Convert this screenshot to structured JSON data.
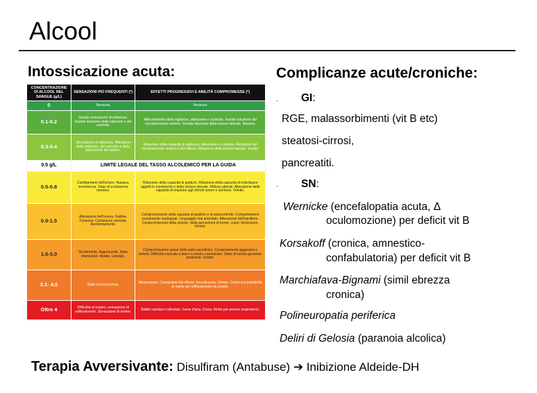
{
  "title": "Alcool",
  "left_heading": "Intossicazione acuta:",
  "right_heading": "Complicanze acute/croniche:",
  "table": {
    "headers": [
      "CONCENTRAZIONE DI ALCOOL NEL SANGUE (g/L)",
      "SENSAZIONI PIÙ FREQUENTI (*)",
      "EFFETTI PROGRESSIVI E ABILITÀ COMPROMESSE (*)"
    ],
    "rows": [
      {
        "conc": "0",
        "sens": "Nessuna",
        "eff": "Nessuno",
        "color": "#2e9e4a",
        "fg": "#ffffff"
      },
      {
        "conc": "0.1-0.2",
        "sens": "Iniziale sensazione di ebbrezza. Iniziale riduzione delle inibizioni e del controllo.",
        "eff": "Affievolimento della vigilanza, attenzione e controllo. Iniziale riduzione del coordinamento motorio. Iniziale riduzione della visione laterale. Nausea.",
        "color": "#5aae3c",
        "fg": "#ffffff"
      },
      {
        "conc": "0.3-0.4",
        "sens": "Sensazione di ebbrezza. Riduzione delle inibizioni, del controllo e della percezione del rischio.",
        "eff": "Riduzione della capacità di vigilanza, attenzione e controllo. Riduzione del coordinamento motorio e dei riflessi. Riduzione della visione laterale. Vomito.",
        "color": "#8cc63f",
        "fg": "#ffffff"
      },
      {
        "conc": "0.5-0.8",
        "sens": "Cambiamenti dell'umore. Nausea, sonnolenza. Stato di eccitazione emotiva.",
        "eff": "Riduzione della capacità di giudizio. Riduzione della capacità di individuare oggetti in movimento e della visione laterale. Riflessi alterati. Alterazione delle capacità di reazione agli stimoli sonori e luminosi. Vomito.",
        "color": "#f9ea3a",
        "fg": "#222222"
      },
      {
        "conc": "0.9-1.5",
        "sens": "Alterazione dell'umore. Rabbia. Tristezza. Confusione mentale, disorientamento.",
        "eff": "Compromissione della capacità di giudizio e di autocontrollo. Comportamenti socialmente inadeguati. Linguaggio mal articolato. Alterazione dell'equilibrio. Compromissione della visione, della percezione di forme, colori, dimensioni. Vomito.",
        "color": "#fbc02d",
        "fg": "#222222"
      },
      {
        "conc": "1.6-3.0",
        "sens": "Stordimento. Aggressività. Stato depressivo. Apatia. Letargia.",
        "eff": "Compromissione grave dello stato psicofisico. Comportamenti aggressivi e violenti. Difficoltà marcata a stare in piedi o camminare. Stato di inerzia generale. Ipotermia. Vomito.",
        "color": "#f59b2b",
        "fg": "#222222"
      },
      {
        "conc": "3.1- 4.0",
        "sens": "Stato di incoscienza.",
        "eff": "Allucinazioni. Cessazione dei riflessi. Incontinenza. Vomito. Coma con possibilità di morte per soffocamento da vomito.",
        "color": "#ef7b2a",
        "fg": "#ffffff"
      },
      {
        "conc": "Oltre 4",
        "sens": "Difficoltà di respiro, sensazione di soffocamento. Sensazione di morire.",
        "eff": "Battito cardiaco rallentato. Fame d'aria. Coma. Morte per arresto respiratorio.",
        "color": "#e31b23",
        "fg": "#ffffff"
      }
    ],
    "legal_conc": "0.5 g/L",
    "legal_text": "LIMITE LEGALE DEL TASSO ALCOLEMICO PER LA GUIDA"
  },
  "gi_label": "GI",
  "gi_items": [
    "RGE, malassorbimenti (vit B etc)",
    "steatosi-cirrosi,",
    "pancreatiti."
  ],
  "sn_label": "SN",
  "sn_items": [
    {
      "name": "Wernicke",
      "line1": " (encefalopatia acuta, Δ",
      "line2": "oculomozione) per deficit vit B"
    },
    {
      "name": "Korsakoff",
      "line1": " (cronica, amnestico-",
      "line2": "confabulatoria) per deficit vit B"
    },
    {
      "name": "Marchiafava-Bignami",
      "line1": " (simil ebrezza",
      "line2": "cronica)"
    },
    {
      "name": "Polineuropatia periferica",
      "line1": "",
      "line2": ""
    },
    {
      "name": "Deliri di Gelosia",
      "line1": " (paranoia alcolica)",
      "line2": ""
    }
  ],
  "bottom": {
    "label": "Terapia Avversivante:",
    "drug": " Disulfiram (Antabuse) ",
    "arrow": "➔",
    "effect": " Inibizione Aldeide-DH"
  }
}
